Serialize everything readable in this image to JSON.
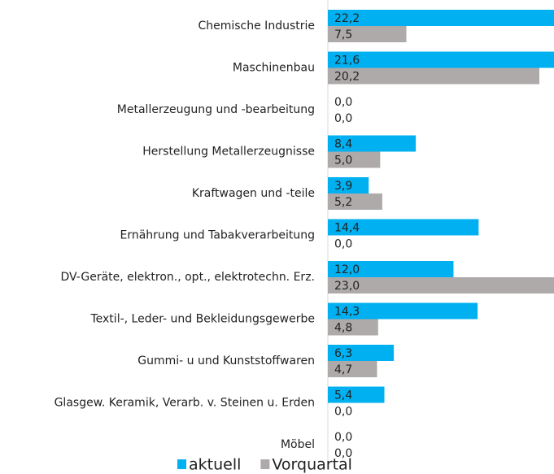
{
  "chart_data": {
    "type": "bar",
    "orientation": "horizontal",
    "categories": [
      "Chemische Industrie",
      "Maschinenbau",
      "Metallerzeugung und -bearbeitung",
      "Herstellung Metallerzeugnisse",
      "Kraftwagen und -teile",
      "Ernährung und Tabakverarbeitung",
      "DV-Geräte, elektron., opt., elektrotechn. Erz.",
      "Textil-, Leder- und Bekleidungsgewerbe",
      "Gummi- u und Kunststoffwaren",
      "Glasgew. Keramik, Verarb. v. Steinen u. Erden",
      "Möbel"
    ],
    "series": [
      {
        "name": "aktuell",
        "color": "#00b0f0",
        "values": [
          22.2,
          21.6,
          0.0,
          8.4,
          3.9,
          14.4,
          12.0,
          14.3,
          6.3,
          5.4,
          0.0
        ],
        "value_labels": [
          "22,2",
          "21,6",
          "0,0",
          "8,4",
          "3,9",
          "14,4",
          "12,0",
          "14,3",
          "6,3",
          "5,4",
          "0,0"
        ]
      },
      {
        "name": "Vorquartal",
        "color": "#aeaaaa",
        "values": [
          7.5,
          20.2,
          0.0,
          5.0,
          5.2,
          0.0,
          23.0,
          4.8,
          4.7,
          0.0,
          0.0
        ],
        "value_labels": [
          "7,5",
          "20,2",
          "0,0",
          "5,0",
          "5,2",
          "0,0",
          "23,0",
          "4,8",
          "4,7",
          "0,0",
          "0,0"
        ]
      }
    ],
    "xlim": [
      0,
      21.6
    ],
    "legend": "bottom-left"
  }
}
